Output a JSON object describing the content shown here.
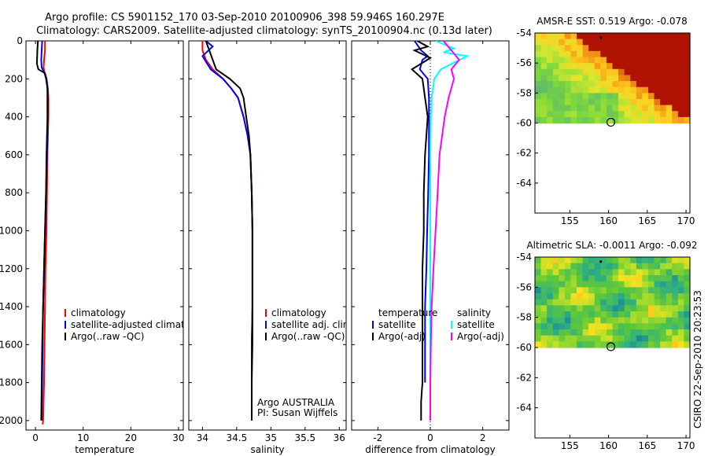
{
  "header": {
    "title_line1": "Argo profile: CS 5901152_170 03-Sep-2010 20100906_398 59.946S 160.297E",
    "title_line2": "Climatology: CARS2009. Satellite-adjusted climatology: synTS_20100904.nc (0.13d later)"
  },
  "footer": {
    "credit": "CSIRO 22-Sep-2010 20:23:53"
  },
  "chart_data": [
    {
      "type": "line",
      "id": "temperature",
      "xlabel": "temperature",
      "ylabel": "",
      "xlim": [
        -2,
        31
      ],
      "ylim": [
        2050,
        0
      ],
      "xticks": [
        0,
        10,
        20,
        30
      ],
      "yticks": [
        0,
        200,
        400,
        600,
        800,
        1000,
        1200,
        1400,
        1600,
        1800,
        2000
      ],
      "legend": [
        "climatology",
        "satellite-adjusted climatology",
        "Argo(..raw -QC)"
      ],
      "legend_position": "lower-left",
      "series": [
        {
          "name": "climatology",
          "color": "#ff0000",
          "x": [
            2.0,
            2.0,
            1.8,
            1.7,
            1.9,
            2.3,
            2.6,
            2.7,
            2.7,
            2.6,
            2.5,
            2.4,
            2.3,
            2.1,
            2.0,
            1.9,
            1.8,
            1.6,
            1.5
          ],
          "y": [
            0,
            50,
            100,
            140,
            170,
            200,
            250,
            300,
            400,
            500,
            600,
            800,
            1000,
            1200,
            1400,
            1600,
            1800,
            2000,
            2020
          ]
        },
        {
          "name": "satellite-adjusted climatology",
          "color": "#0000ff",
          "x": [
            1.4,
            1.3,
            1.2,
            1.3,
            1.9,
            2.2,
            2.5,
            2.6,
            2.6,
            2.5,
            2.4,
            2.2,
            2.0,
            1.8,
            1.6,
            1.5,
            1.4,
            1.3
          ],
          "y": [
            0,
            50,
            100,
            140,
            170,
            200,
            250,
            300,
            400,
            500,
            600,
            800,
            1000,
            1200,
            1400,
            1600,
            1800,
            2000
          ]
        },
        {
          "name": "Argo(..raw -QC)",
          "color": "#000000",
          "x": [
            0.5,
            0.4,
            0.3,
            0.6,
            2.0,
            2.3,
            2.5,
            2.5,
            2.5,
            2.4,
            2.3,
            2.2,
            2.0,
            1.8,
            1.6,
            1.4,
            1.3,
            1.2
          ],
          "y": [
            0,
            50,
            120,
            150,
            170,
            200,
            250,
            300,
            400,
            500,
            600,
            800,
            1000,
            1200,
            1400,
            1600,
            1800,
            2000
          ]
        }
      ]
    },
    {
      "type": "line",
      "id": "salinity",
      "xlabel": "salinity",
      "ylabel": "",
      "xlim": [
        33.8,
        36.1
      ],
      "ylim": [
        2050,
        0
      ],
      "xticks": [
        34,
        34.5,
        35,
        35.5,
        36
      ],
      "xticklabels": [
        "34",
        "34.5",
        "35",
        "35.5",
        "36"
      ],
      "legend": [
        "climatology",
        "satellite adj. clim.",
        "Argo(..raw -QC)"
      ],
      "legend_position": "lower-right",
      "annotation": [
        "Argo AUSTRALIA",
        "PI: Susan Wijffels"
      ],
      "series": [
        {
          "name": "climatology",
          "color": "#ff0000",
          "x": [
            34.0,
            34.0,
            34.05,
            34.15,
            34.3,
            34.42,
            34.52,
            34.6,
            34.66,
            34.7,
            34.72,
            34.73,
            34.73,
            34.73,
            34.72,
            34.72,
            34.72
          ],
          "y": [
            0,
            50,
            100,
            150,
            200,
            250,
            300,
            400,
            500,
            600,
            800,
            1000,
            1200,
            1400,
            1600,
            1800,
            2000
          ]
        },
        {
          "name": "satellite adj. clim.",
          "color": "#0000ff",
          "x": [
            34.05,
            34.15,
            34.0,
            34.12,
            34.3,
            34.42,
            34.52,
            34.6,
            34.66,
            34.7,
            34.72,
            34.73,
            34.73,
            34.73,
            34.72,
            34.72,
            34.72
          ],
          "y": [
            0,
            30,
            80,
            150,
            200,
            250,
            300,
            400,
            500,
            600,
            800,
            1000,
            1200,
            1400,
            1600,
            1800,
            2000
          ]
        },
        {
          "name": "Argo(..raw -QC)",
          "color": "#000000",
          "x": [
            34.05,
            34.15,
            34.2,
            34.4,
            34.55,
            34.6,
            34.64,
            34.68,
            34.7,
            34.72,
            34.73,
            34.73,
            34.73,
            34.73,
            34.72,
            34.72
          ],
          "y": [
            0,
            100,
            150,
            200,
            250,
            300,
            400,
            500,
            600,
            800,
            1000,
            1200,
            1400,
            1600,
            1800,
            2000
          ]
        }
      ]
    },
    {
      "type": "line",
      "id": "difference",
      "xlabel": "difference from climatology",
      "ylabel": "",
      "xlim": [
        -3.0,
        3.0
      ],
      "ylim": [
        2050,
        0
      ],
      "xticks": [
        -2,
        0,
        2
      ],
      "legend_columns": [
        {
          "heading": "temperature",
          "items": [
            "satellite",
            "Argo(-adj)"
          ]
        },
        {
          "heading": "salinity",
          "items": [
            "satellite",
            "Argo(-adj)"
          ]
        }
      ],
      "series": [
        {
          "name": "temperature satellite",
          "color": "#0000ff",
          "x": [
            -0.6,
            -0.35,
            -0.1,
            -0.3,
            -0.4,
            -0.1,
            -0.05,
            -0.05,
            -0.05,
            -0.08,
            -0.12,
            -0.15,
            -0.2,
            -0.2,
            -0.2
          ],
          "y": [
            0,
            50,
            80,
            100,
            150,
            200,
            300,
            400,
            600,
            800,
            1000,
            1200,
            1400,
            1600,
            1800
          ]
        },
        {
          "name": "temperature Argo(-adj)",
          "color": "#000000",
          "x": [
            -0.5,
            -0.1,
            -0.6,
            0.0,
            -0.7,
            -0.3,
            -0.2,
            -0.1,
            -0.2,
            -0.25,
            -0.25,
            -0.3,
            -0.3,
            -0.3,
            -0.3,
            -0.35,
            -0.35
          ],
          "y": [
            0,
            30,
            50,
            90,
            150,
            200,
            300,
            400,
            600,
            800,
            1000,
            1200,
            1400,
            1600,
            1800,
            1900,
            2000
          ]
        },
        {
          "name": "salinity satellite",
          "color": "#00ffff",
          "x": [
            0.2,
            0.9,
            0.5,
            1.4,
            0.4,
            0.15,
            0.05,
            0.02,
            0.0,
            0.0,
            0.0,
            0.0,
            0.0,
            0.0,
            0.0,
            0.0
          ],
          "y": [
            0,
            40,
            60,
            80,
            150,
            200,
            300,
            400,
            600,
            800,
            1000,
            1200,
            1400,
            1600,
            1800,
            2000
          ]
        },
        {
          "name": "salinity Argo(-adj)",
          "color": "#ff00ff",
          "x": [
            0.5,
            1.1,
            0.8,
            0.9,
            0.7,
            0.55,
            0.45,
            0.35,
            0.28,
            0.2,
            0.12,
            0.05,
            0.02,
            0.0,
            0.0
          ],
          "y": [
            0,
            100,
            150,
            200,
            300,
            400,
            500,
            600,
            800,
            1000,
            1200,
            1400,
            1600,
            1800,
            2000
          ]
        }
      ]
    },
    {
      "type": "heatmap",
      "id": "sst-map",
      "title": "AMSR-E SST: 0.519 Argo: -0.078",
      "xlim": [
        150.5,
        170.5
      ],
      "ylim": [
        -66,
        -54
      ],
      "xticks": [
        155,
        160,
        165,
        170
      ],
      "yticks": [
        -54,
        -56,
        -58,
        -60,
        -62,
        -64
      ],
      "data_ylim": [
        -60,
        -54
      ],
      "marker": {
        "lon": 160.297,
        "lat": -59.946
      }
    },
    {
      "type": "heatmap",
      "id": "sla-map",
      "title": "Altimetric SLA: -0.0011 Argo: -0.092",
      "xlim": [
        150.5,
        170.5
      ],
      "ylim": [
        -66,
        -54
      ],
      "xticks": [
        155,
        160,
        165,
        170
      ],
      "yticks": [
        -54,
        -56,
        -58,
        -60,
        -62,
        -64
      ],
      "data_ylim": [
        -60,
        -54
      ],
      "marker": {
        "lon": 160.297,
        "lat": -59.946
      }
    }
  ]
}
